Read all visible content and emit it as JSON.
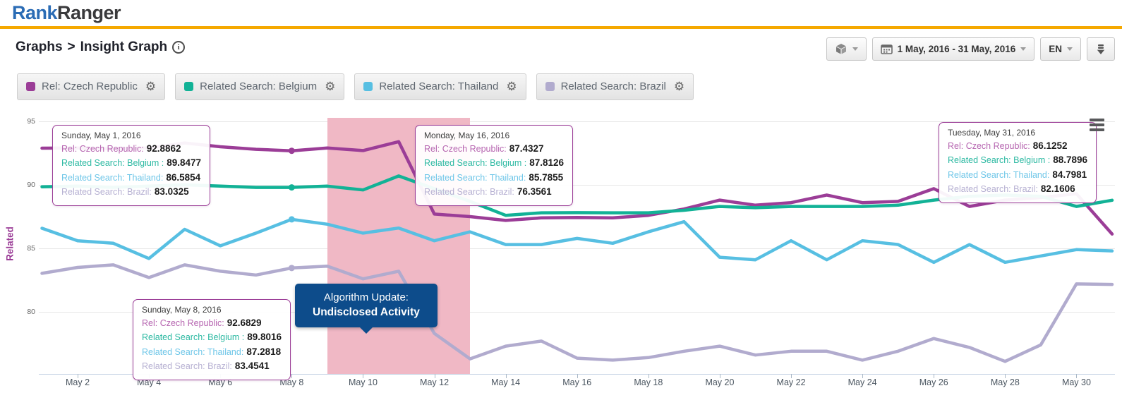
{
  "header": {
    "logo_part1": "Rank",
    "logo_part2": "Ranger"
  },
  "toolbar": {
    "breadcrumb": {
      "section": "Graphs",
      "separator": ">",
      "page": "Insight Graph"
    },
    "info_glyph": "i",
    "controls": {
      "module_button_icon": "cube-icon",
      "date_range": "1 May, 2016 - 31 May, 2016",
      "calendar_icon": "calendar-icon",
      "language": "EN",
      "download_icon": "download-icon"
    }
  },
  "legend": {
    "items": [
      {
        "label": "Rel: Czech Republic",
        "color": "#9b3d97",
        "gear_icon": "gear-icon"
      },
      {
        "label": "Related Search: Belgium",
        "color": "#12b296",
        "gear_icon": "gear-icon"
      },
      {
        "label": "Related Search: Thailand",
        "color": "#57bfe2",
        "gear_icon": "gear-icon"
      },
      {
        "label": "Related Search: Brazil",
        "color": "#b1abce",
        "gear_icon": "gear-icon"
      }
    ]
  },
  "chart_data": {
    "type": "line",
    "title": "",
    "ylabel": "Related",
    "xlabel": "",
    "ylim": [
      75,
      95.5
    ],
    "y_ticks": [
      95,
      90,
      85,
      80
    ],
    "grid": "horizontal",
    "legend_position": "top",
    "x_days": [
      1,
      2,
      3,
      4,
      5,
      6,
      7,
      8,
      9,
      10,
      11,
      12,
      13,
      14,
      15,
      16,
      17,
      18,
      19,
      20,
      21,
      22,
      23,
      24,
      25,
      26,
      27,
      28,
      29,
      30,
      31
    ],
    "x_tick_days": [
      2,
      4,
      6,
      8,
      10,
      12,
      14,
      16,
      18,
      20,
      22,
      24,
      26,
      28,
      30
    ],
    "x_tick_labels": [
      "May 2",
      "May 4",
      "May 6",
      "May 8",
      "May 10",
      "May 12",
      "May 14",
      "May 16",
      "May 18",
      "May 20",
      "May 22",
      "May 24",
      "May 26",
      "May 28",
      "May 30"
    ],
    "marker_day": 8,
    "series": [
      {
        "name": "Rel: Czech Republic",
        "key": "czech-republic",
        "color": "#9b3d97",
        "label_color": "#b665b0",
        "values": [
          92.8862,
          92.9,
          92.85,
          92.9,
          93.3,
          93.0,
          92.8,
          92.6829,
          92.9,
          92.7,
          93.4,
          87.7,
          87.5,
          87.2,
          87.4,
          87.4327,
          87.4,
          87.6,
          88.1,
          88.8,
          88.4,
          88.6,
          89.2,
          88.6,
          88.7,
          89.7,
          88.3,
          88.8,
          89.0,
          89.3,
          86.1252
        ]
      },
      {
        "name": "Related Search: Belgium",
        "key": "belgium",
        "color": "#12b296",
        "label_color": "#2cb9a2",
        "values": [
          89.8477,
          89.9,
          89.8,
          89.9,
          90.0,
          89.9,
          89.8,
          89.8016,
          89.9,
          89.6,
          90.7,
          89.7,
          88.7,
          87.6,
          87.8,
          87.8126,
          87.8,
          87.8,
          88.0,
          88.3,
          88.2,
          88.3,
          88.3,
          88.3,
          88.4,
          88.8,
          89.1,
          89.2,
          89.1,
          88.3,
          88.7896
        ]
      },
      {
        "name": "Related Search: Thailand",
        "key": "thailand",
        "color": "#57bfe2",
        "label_color": "#6ec6e8",
        "values": [
          86.5854,
          85.6,
          85.4,
          84.2,
          86.5,
          85.2,
          86.2,
          87.2818,
          86.9,
          86.2,
          86.6,
          85.6,
          86.3,
          85.3,
          85.3,
          85.7855,
          85.4,
          86.3,
          87.1,
          84.3,
          84.1,
          85.6,
          84.1,
          85.6,
          85.3,
          83.9,
          85.3,
          83.9,
          84.4,
          84.9,
          84.7981
        ]
      },
      {
        "name": "Related Search: Brazil",
        "key": "brazil",
        "color": "#b1abce",
        "label_color": "#b6b0d2",
        "values": [
          83.0325,
          83.5,
          83.7,
          82.7,
          83.7,
          83.2,
          82.9,
          83.4541,
          83.6,
          82.6,
          83.2,
          78.3,
          76.3,
          77.3,
          77.7,
          76.3561,
          76.2,
          76.4,
          76.9,
          77.3,
          76.6,
          76.9,
          76.9,
          76.2,
          76.9,
          77.9,
          77.2,
          76.1,
          77.4,
          82.2,
          82.1606
        ]
      }
    ],
    "plot_band": {
      "from_day": 9,
      "to_day": 13,
      "color": "#f0b8c5"
    },
    "annotation": {
      "line1": "Algorithm Update:",
      "line2": "Undisclosed Activity"
    }
  },
  "tooltips": [
    {
      "date": "Sunday, May 1, 2016",
      "rows": [
        {
          "label": "Rel: Czech Republic:",
          "value": "92.8862"
        },
        {
          "label": "Related Search: Belgium :",
          "value": "89.8477"
        },
        {
          "label": "Related Search: Thailand:",
          "value": "86.5854"
        },
        {
          "label": "Related Search: Brazil:",
          "value": "83.0325"
        }
      ]
    },
    {
      "date": "Sunday, May 8, 2016",
      "rows": [
        {
          "label": "Rel: Czech Republic:",
          "value": "92.6829"
        },
        {
          "label": "Related Search: Belgium :",
          "value": "89.8016"
        },
        {
          "label": "Related Search: Thailand:",
          "value": "87.2818"
        },
        {
          "label": "Related Search: Brazil:",
          "value": "83.4541"
        }
      ]
    },
    {
      "date": "Monday, May 16, 2016",
      "rows": [
        {
          "label": "Rel: Czech Republic:",
          "value": "87.4327"
        },
        {
          "label": "Related Search: Belgium :",
          "value": "87.8126"
        },
        {
          "label": "Related Search: Thailand:",
          "value": "85.7855"
        },
        {
          "label": "Related Search: Brazil:",
          "value": "76.3561"
        }
      ]
    },
    {
      "date": "Tuesday, May 31, 2016",
      "rows": [
        {
          "label": "Rel: Czech Republic:",
          "value": "86.1252"
        },
        {
          "label": "Related Search: Belgium :",
          "value": "88.7896"
        },
        {
          "label": "Related Search: Thailand:",
          "value": "84.7981"
        },
        {
          "label": "Related Search: Brazil:",
          "value": "82.1606"
        }
      ]
    }
  ]
}
